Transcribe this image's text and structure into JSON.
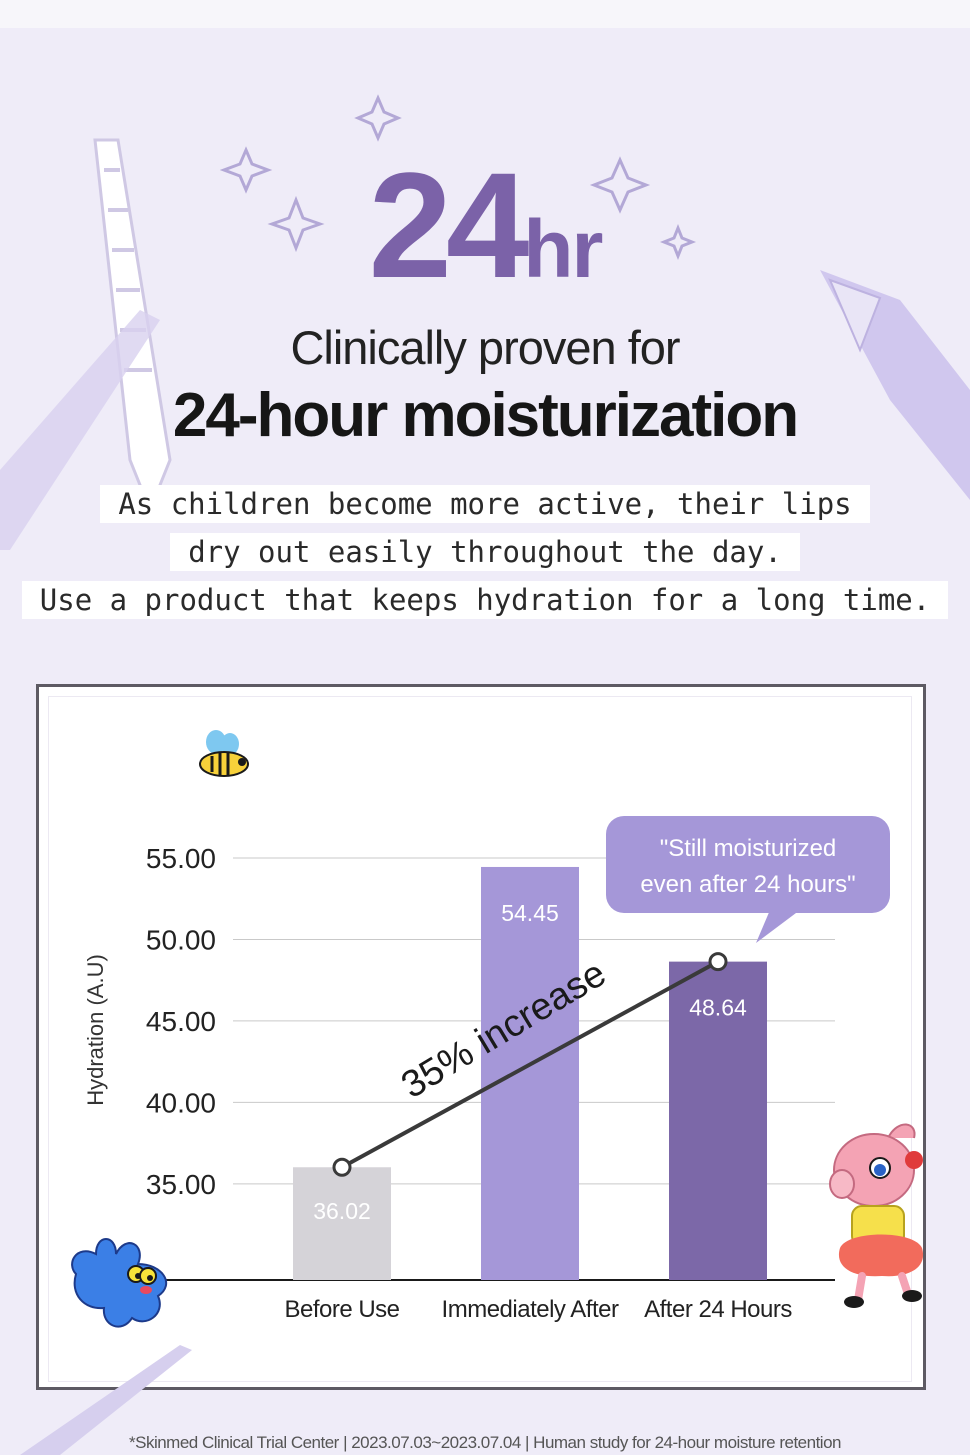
{
  "hero": {
    "number": "24",
    "unit": "hr"
  },
  "headline": {
    "line1": "Clinically proven for",
    "line2": "24-hour moisturization"
  },
  "description": [
    "As children become more active, their lips",
    "dry out easily throughout the day.",
    "Use a product that keeps hydration for a long time."
  ],
  "callout": {
    "line1": "\"Still moisturized",
    "line2": "even after 24 hours\""
  },
  "increase_note": "35% increase",
  "footnote": "*Skinmed Clinical Trial Center | 2023.07.03~2023.07.04 | Human study for 24-hour moisture retention",
  "colors": {
    "accent": "#7b62a8",
    "bar_before": "#d5d3d8",
    "bar_immediate": "#a597d8",
    "bar_after24": "#7c68a8",
    "callout_bg": "#a597d8"
  },
  "chart_data": {
    "type": "bar",
    "ylabel": "Hydration (A.U)",
    "xlabel": "",
    "title": "",
    "categories": [
      "Before Use",
      "Immediately After",
      "After 24 Hours"
    ],
    "values": [
      36.02,
      54.45,
      48.64
    ],
    "value_labels": [
      "36.02",
      "54.45",
      "48.64"
    ],
    "yticks": [
      "35.00",
      "40.00",
      "45.00",
      "50.00",
      "55.00"
    ],
    "ytick_values": [
      35,
      40,
      45,
      50,
      55
    ],
    "ylim": [
      29.1,
      56
    ],
    "grid": true,
    "trend_line": {
      "from": "Before Use",
      "to": "After 24 Hours"
    }
  }
}
